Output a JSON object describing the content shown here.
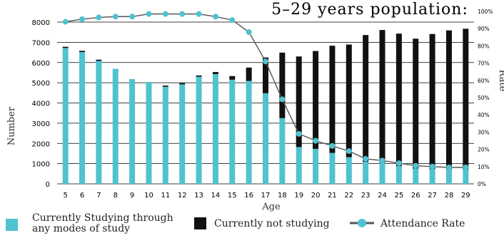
{
  "chart_data": {
    "type": "bar",
    "title": "5–29 years population:",
    "xlabel": "Age",
    "ylabel": "Number",
    "y2label": "Rate",
    "ylim": [
      0,
      8000
    ],
    "yticks": [
      0,
      1000,
      2000,
      3000,
      4000,
      5000,
      6000,
      7000,
      8000
    ],
    "y2lim": [
      0,
      100
    ],
    "y2ticks": [
      "0%",
      "10%",
      "20%",
      "30%",
      "40%",
      "50%",
      "60%",
      "70%",
      "80%",
      "90%",
      "100%"
    ],
    "grid": true,
    "categories": [
      "5",
      "6",
      "7",
      "8",
      "9",
      "10",
      "11",
      "12",
      "13",
      "14",
      "15",
      "16",
      "17",
      "18",
      "19",
      "20",
      "21",
      "22",
      "23",
      "24",
      "25",
      "26",
      "27",
      "28",
      "29"
    ],
    "series": [
      {
        "name": "Currently Studying through any modes of study",
        "kind": "bar",
        "color": "#4fc3cf",
        "values": [
          6720,
          6520,
          6080,
          5690,
          5180,
          5040,
          4800,
          4920,
          5300,
          5430,
          5150,
          5090,
          4480,
          3250,
          1820,
          1730,
          1530,
          1320,
          1090,
          1040,
          880,
          760,
          730,
          710,
          710
        ]
      },
      {
        "name": "Currently not studying",
        "kind": "bar",
        "color": "#111111",
        "values": [
          60,
          60,
          60,
          0,
          0,
          0,
          60,
          60,
          60,
          100,
          180,
          660,
          1770,
          3240,
          4480,
          4840,
          5300,
          5570,
          6270,
          6570,
          6550,
          6420,
          6680,
          6880,
          6960
        ]
      },
      {
        "name": "Attendance Rate",
        "kind": "line",
        "axis": "right",
        "color": "#4fc3cf",
        "line_color": "#555555",
        "values": [
          94,
          95.5,
          96.5,
          97,
          97,
          98.5,
          98.5,
          98.5,
          98.5,
          97,
          95,
          88,
          71,
          49,
          29,
          25,
          22,
          19,
          14.5,
          13.5,
          12,
          10.5,
          10,
          9.5,
          9.5
        ]
      }
    ],
    "legend": {
      "placement": "bottom",
      "items": [
        {
          "label": "Currently Studying through any modes of study",
          "color": "#4fc3cf",
          "marker": "square"
        },
        {
          "label": "Currently not studying",
          "color": "#111111",
          "marker": "square"
        },
        {
          "label": "Attendance Rate",
          "color": "#4fc3cf",
          "marker": "line-dot",
          "line_color": "#555555"
        }
      ]
    }
  }
}
